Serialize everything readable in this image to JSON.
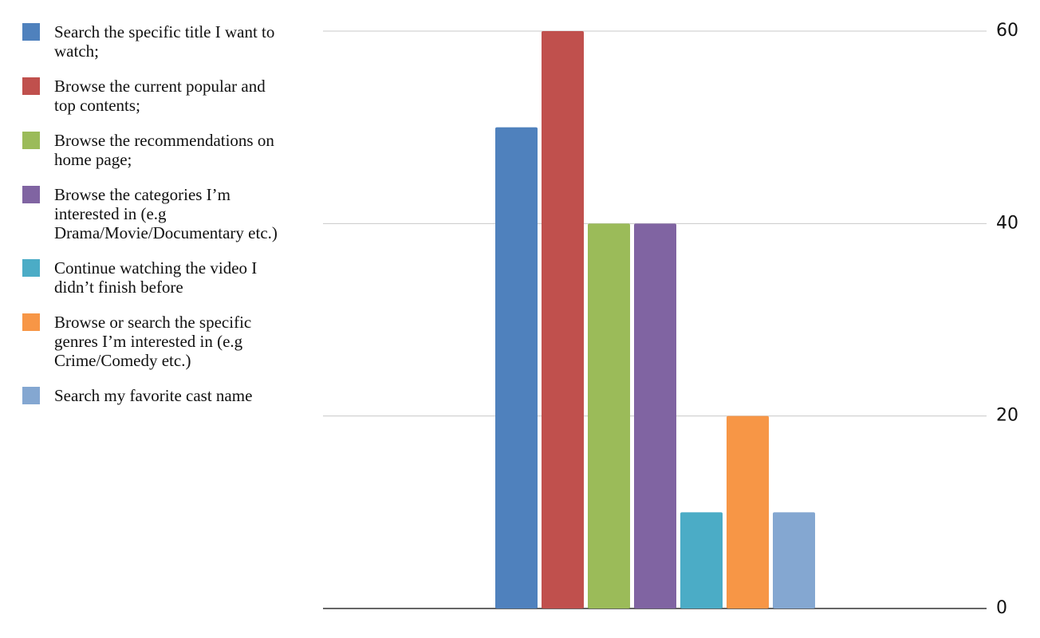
{
  "chart_data": {
    "type": "bar",
    "categories": [
      null
    ],
    "series": [
      {
        "name": "Search the specific title I want to watch;",
        "color": "#4f81bd",
        "values": [
          50
        ]
      },
      {
        "name": "Browse the current popular and top contents;",
        "color": "#c0504d",
        "values": [
          60
        ]
      },
      {
        "name": "Browse the recommendations on home page;",
        "color": "#9bbb59",
        "values": [
          40
        ]
      },
      {
        "name": "Browse the categories I’m interested in (e.g Drama/Movie/Documentary etc.)",
        "color": "#8064a2",
        "values": [
          40
        ]
      },
      {
        "name": "Continue watching the video I didn’t finish before",
        "color": "#4bacc6",
        "values": [
          10
        ]
      },
      {
        "name": "Browse or search the specific genres I’m interested in (e.g Crime/Comedy etc.)",
        "color": "#f79646",
        "values": [
          20
        ]
      },
      {
        "name": "Search my favorite cast name",
        "color": "#84a7d1",
        "values": [
          10
        ]
      }
    ],
    "ylim": [
      0,
      60
    ],
    "yticks": [
      0,
      20,
      40,
      60
    ],
    "grid": true,
    "y_axis_side": "right",
    "legend": "left"
  }
}
